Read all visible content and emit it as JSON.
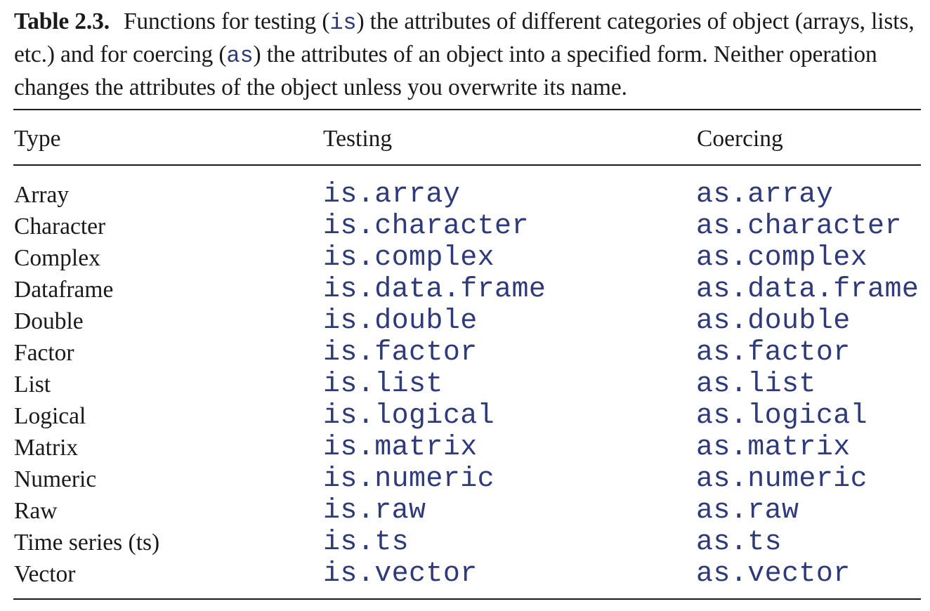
{
  "caption": {
    "label": "Table 2.3.",
    "part1": "Functions for testing (",
    "code_is": "is",
    "part2": ") the attributes of different categories of object (arrays, lists, etc.) and for coercing (",
    "code_as": "as",
    "part3": ") the attributes of an object into a specified form. Neither operation changes the attributes of the object unless you overwrite its name."
  },
  "headers": {
    "type": "Type",
    "testing": "Testing",
    "coercing": "Coercing"
  },
  "rows": [
    {
      "type": "Array",
      "testing": "is.array",
      "coercing": "as.array"
    },
    {
      "type": "Character",
      "testing": "is.character",
      "coercing": "as.character"
    },
    {
      "type": "Complex",
      "testing": "is.complex",
      "coercing": "as.complex"
    },
    {
      "type": "Dataframe",
      "testing": "is.data.frame",
      "coercing": "as.data.frame"
    },
    {
      "type": "Double",
      "testing": "is.double",
      "coercing": "as.double"
    },
    {
      "type": "Factor",
      "testing": "is.factor",
      "coercing": "as.factor"
    },
    {
      "type": "List",
      "testing": "is.list",
      "coercing": "as.list"
    },
    {
      "type": "Logical",
      "testing": "is.logical",
      "coercing": "as.logical"
    },
    {
      "type": "Matrix",
      "testing": "is.matrix",
      "coercing": "as.matrix"
    },
    {
      "type": "Numeric",
      "testing": "is.numeric",
      "coercing": "as.numeric"
    },
    {
      "type": "Raw",
      "testing": "is.raw",
      "coercing": "as.raw"
    },
    {
      "type": "Time series (ts)",
      "testing": "is.ts",
      "coercing": "as.ts"
    },
    {
      "type": "Vector",
      "testing": "is.vector",
      "coercing": "as.vector"
    }
  ],
  "colors": {
    "code": "#2f3a7a",
    "text": "#1a1a1a"
  }
}
